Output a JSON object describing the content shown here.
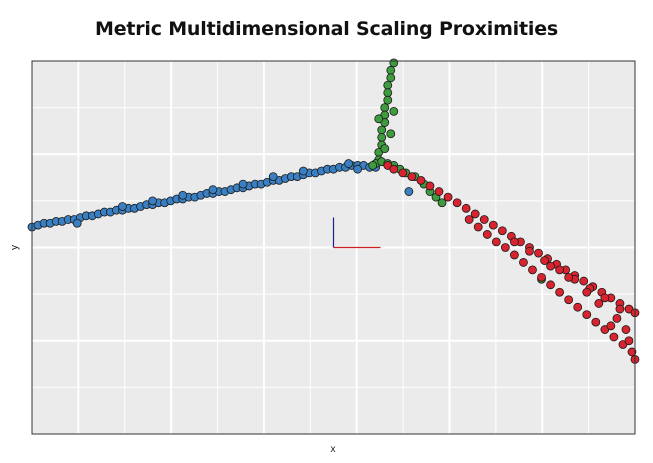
{
  "chart_data": {
    "type": "scatter",
    "title": "Metric Multidimensional Scaling Proximities",
    "xlabel": "x",
    "ylabel": "y",
    "grid": true,
    "xlim": [
      -1.0,
      1.0
    ],
    "ylim": [
      -1.0,
      1.0
    ],
    "colors": {
      "blue": "#3a7fc1",
      "green": "#3e9b3e",
      "red": "#d8242f",
      "background": "#ebebeb",
      "grid": "#ffffff"
    },
    "series": [
      {
        "color": "blue",
        "points": [
          [
            -1.0,
            0.11
          ],
          [
            -0.98,
            0.12
          ],
          [
            -0.96,
            0.13
          ],
          [
            -0.94,
            0.13
          ],
          [
            -0.92,
            0.14
          ],
          [
            -0.9,
            0.14
          ],
          [
            -0.88,
            0.15
          ],
          [
            -0.86,
            0.15
          ],
          [
            -0.84,
            0.16
          ],
          [
            -0.82,
            0.17
          ],
          [
            -0.8,
            0.17
          ],
          [
            -0.78,
            0.18
          ],
          [
            -0.76,
            0.19
          ],
          [
            -0.74,
            0.19
          ],
          [
            -0.72,
            0.2
          ],
          [
            -0.7,
            0.2
          ],
          [
            -0.68,
            0.21
          ],
          [
            -0.66,
            0.21
          ],
          [
            -0.64,
            0.22
          ],
          [
            -0.62,
            0.23
          ],
          [
            -0.6,
            0.23
          ],
          [
            -0.58,
            0.24
          ],
          [
            -0.56,
            0.24
          ],
          [
            -0.54,
            0.25
          ],
          [
            -0.52,
            0.26
          ],
          [
            -0.5,
            0.26
          ],
          [
            -0.48,
            0.27
          ],
          [
            -0.46,
            0.27
          ],
          [
            -0.44,
            0.28
          ],
          [
            -0.42,
            0.29
          ],
          [
            -0.4,
            0.29
          ],
          [
            -0.38,
            0.3
          ],
          [
            -0.36,
            0.3
          ],
          [
            -0.34,
            0.31
          ],
          [
            -0.32,
            0.32
          ],
          [
            -0.3,
            0.32
          ],
          [
            -0.28,
            0.33
          ],
          [
            -0.26,
            0.34
          ],
          [
            -0.24,
            0.34
          ],
          [
            -0.22,
            0.35
          ],
          [
            -0.2,
            0.36
          ],
          [
            -0.18,
            0.36
          ],
          [
            -0.16,
            0.37
          ],
          [
            -0.14,
            0.38
          ],
          [
            -0.12,
            0.38
          ],
          [
            -0.1,
            0.39
          ],
          [
            -0.08,
            0.4
          ],
          [
            -0.06,
            0.4
          ],
          [
            -0.04,
            0.41
          ],
          [
            -0.02,
            0.42
          ],
          [
            0.0,
            0.42
          ],
          [
            0.02,
            0.43
          ],
          [
            0.04,
            0.43
          ],
          [
            0.06,
            0.44
          ],
          [
            0.08,
            0.44
          ],
          [
            0.1,
            0.44
          ],
          [
            0.12,
            0.43
          ],
          [
            0.14,
            0.43
          ],
          [
            -0.7,
            0.22
          ],
          [
            -0.5,
            0.28
          ],
          [
            -0.3,
            0.34
          ],
          [
            -0.1,
            0.41
          ],
          [
            0.05,
            0.45
          ],
          [
            -0.85,
            0.13
          ],
          [
            -0.6,
            0.25
          ],
          [
            -0.4,
            0.31
          ],
          [
            -0.2,
            0.38
          ],
          [
            0.08,
            0.42
          ],
          [
            0.25,
            0.3
          ]
        ]
      },
      {
        "color": "green",
        "points": [
          [
            0.2,
            0.99
          ],
          [
            0.19,
            0.95
          ],
          [
            0.19,
            0.91
          ],
          [
            0.18,
            0.87
          ],
          [
            0.18,
            0.83
          ],
          [
            0.18,
            0.79
          ],
          [
            0.17,
            0.75
          ],
          [
            0.17,
            0.71
          ],
          [
            0.17,
            0.67
          ],
          [
            0.16,
            0.63
          ],
          [
            0.16,
            0.59
          ],
          [
            0.16,
            0.55
          ],
          [
            0.15,
            0.51
          ],
          [
            0.15,
            0.47
          ],
          [
            0.14,
            0.45
          ],
          [
            0.16,
            0.46
          ],
          [
            0.18,
            0.45
          ],
          [
            0.2,
            0.44
          ],
          [
            0.13,
            0.44
          ],
          [
            0.22,
            0.42
          ],
          [
            0.24,
            0.4
          ],
          [
            0.27,
            0.38
          ],
          [
            0.3,
            0.34
          ],
          [
            0.32,
            0.3
          ],
          [
            0.34,
            0.27
          ],
          [
            0.36,
            0.24
          ],
          [
            0.17,
            0.53
          ],
          [
            0.19,
            0.61
          ],
          [
            0.15,
            0.69
          ],
          [
            0.2,
            0.73
          ],
          [
            0.69,
            -0.17
          ]
        ]
      },
      {
        "color": "red",
        "points": [
          [
            0.18,
            0.44
          ],
          [
            0.2,
            0.42
          ],
          [
            0.23,
            0.4
          ],
          [
            0.26,
            0.38
          ],
          [
            0.29,
            0.36
          ],
          [
            0.32,
            0.33
          ],
          [
            0.35,
            0.3
          ],
          [
            0.38,
            0.27
          ],
          [
            0.41,
            0.24
          ],
          [
            0.44,
            0.21
          ],
          [
            0.47,
            0.18
          ],
          [
            0.5,
            0.15
          ],
          [
            0.53,
            0.12
          ],
          [
            0.56,
            0.09
          ],
          [
            0.59,
            0.06
          ],
          [
            0.62,
            0.03
          ],
          [
            0.65,
            0.0
          ],
          [
            0.68,
            -0.03
          ],
          [
            0.71,
            -0.06
          ],
          [
            0.74,
            -0.09
          ],
          [
            0.77,
            -0.12
          ],
          [
            0.8,
            -0.15
          ],
          [
            0.83,
            -0.18
          ],
          [
            0.86,
            -0.21
          ],
          [
            0.89,
            -0.24
          ],
          [
            0.92,
            -0.27
          ],
          [
            0.95,
            -0.3
          ],
          [
            0.98,
            -0.33
          ],
          [
            1.0,
            -0.35
          ],
          [
            0.45,
            0.15
          ],
          [
            0.48,
            0.11
          ],
          [
            0.51,
            0.07
          ],
          [
            0.54,
            0.03
          ],
          [
            0.57,
            0.0
          ],
          [
            0.6,
            -0.04
          ],
          [
            0.63,
            -0.08
          ],
          [
            0.66,
            -0.12
          ],
          [
            0.69,
            -0.16
          ],
          [
            0.72,
            -0.2
          ],
          [
            0.75,
            -0.24
          ],
          [
            0.78,
            -0.28
          ],
          [
            0.81,
            -0.32
          ],
          [
            0.84,
            -0.36
          ],
          [
            0.87,
            -0.4
          ],
          [
            0.9,
            -0.44
          ],
          [
            0.93,
            -0.48
          ],
          [
            0.96,
            -0.52
          ],
          [
            0.99,
            -0.56
          ],
          [
            1.0,
            -0.6
          ],
          [
            0.6,
            0.03
          ],
          [
            0.65,
            -0.02
          ],
          [
            0.7,
            -0.07
          ],
          [
            0.75,
            -0.12
          ],
          [
            0.8,
            -0.17
          ],
          [
            0.85,
            -0.22
          ],
          [
            0.9,
            -0.27
          ],
          [
            0.95,
            -0.33
          ],
          [
            0.72,
            -0.1
          ],
          [
            0.78,
            -0.16
          ],
          [
            0.84,
            -0.24
          ],
          [
            0.88,
            -0.3
          ],
          [
            0.94,
            -0.38
          ],
          [
            0.97,
            -0.44
          ],
          [
            0.98,
            -0.5
          ],
          [
            0.92,
            -0.42
          ]
        ]
      }
    ]
  },
  "center_marker": {
    "vertical_color": "#1f1f8f",
    "horizontal_color": "#cc1f1f"
  }
}
